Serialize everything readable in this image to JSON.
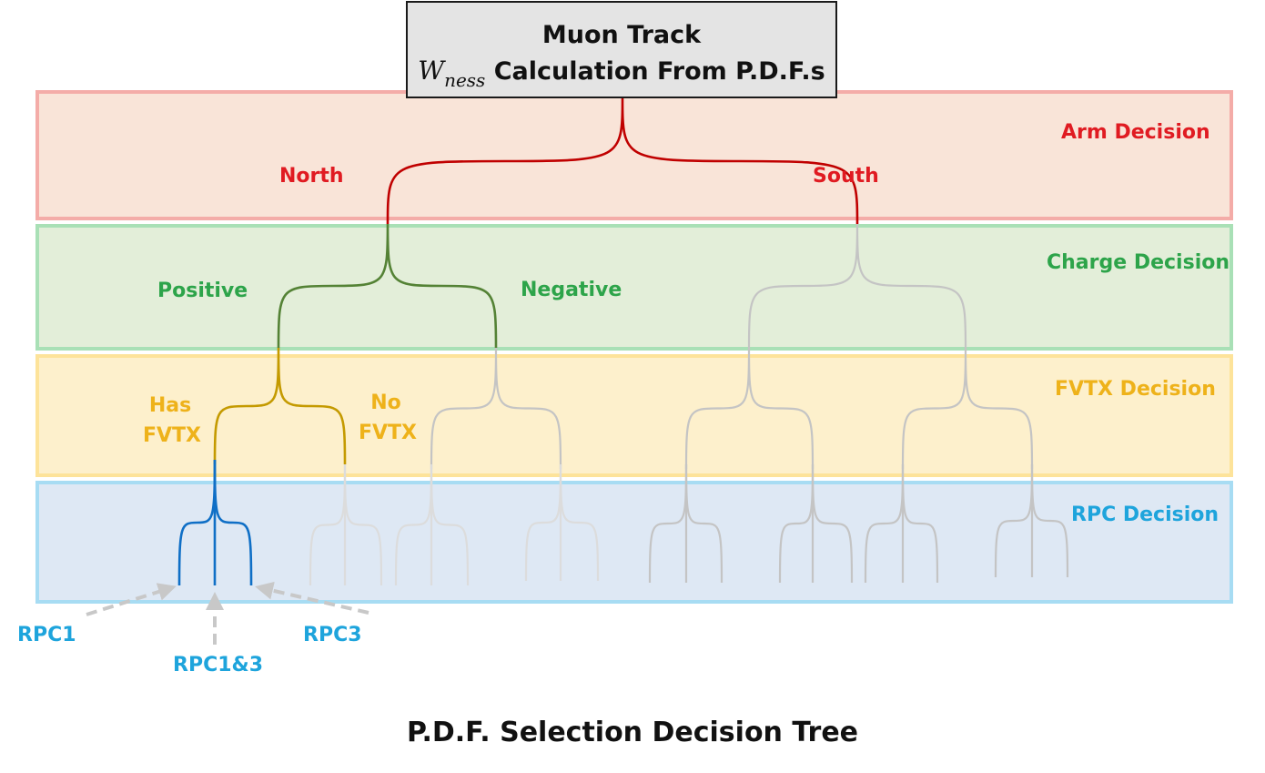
{
  "title": {
    "line1": "Muon Track",
    "w_symbol": "W",
    "w_subscript": "ness",
    "line2_rest": " Calculation From P.D.F.s"
  },
  "levels": {
    "arm": "Arm Decision",
    "charge": "Charge Decision",
    "fvtx": "FVTX Decision",
    "rpc": "RPC Decision"
  },
  "branches": {
    "north": "North",
    "south": "South",
    "positive": "Positive",
    "negative": "Negative",
    "has_fvtx_1": "Has",
    "has_fvtx_2": "FVTX",
    "no_fvtx_1": "No",
    "no_fvtx_2": "FVTX"
  },
  "rpc_outcomes": {
    "rpc1": "RPC1",
    "rpc13": "RPC1&3",
    "rpc3": "RPC3"
  },
  "caption": "P.D.F. Selection Decision Tree",
  "colors": {
    "arm": "#c00000",
    "charge": "#548235",
    "fvtx": "#c49a00",
    "rpc": "#0f6fc6",
    "inactive": "#c4c4c4",
    "inactive_light": "#dcdcdc",
    "arrow": "#c8c8c8"
  }
}
